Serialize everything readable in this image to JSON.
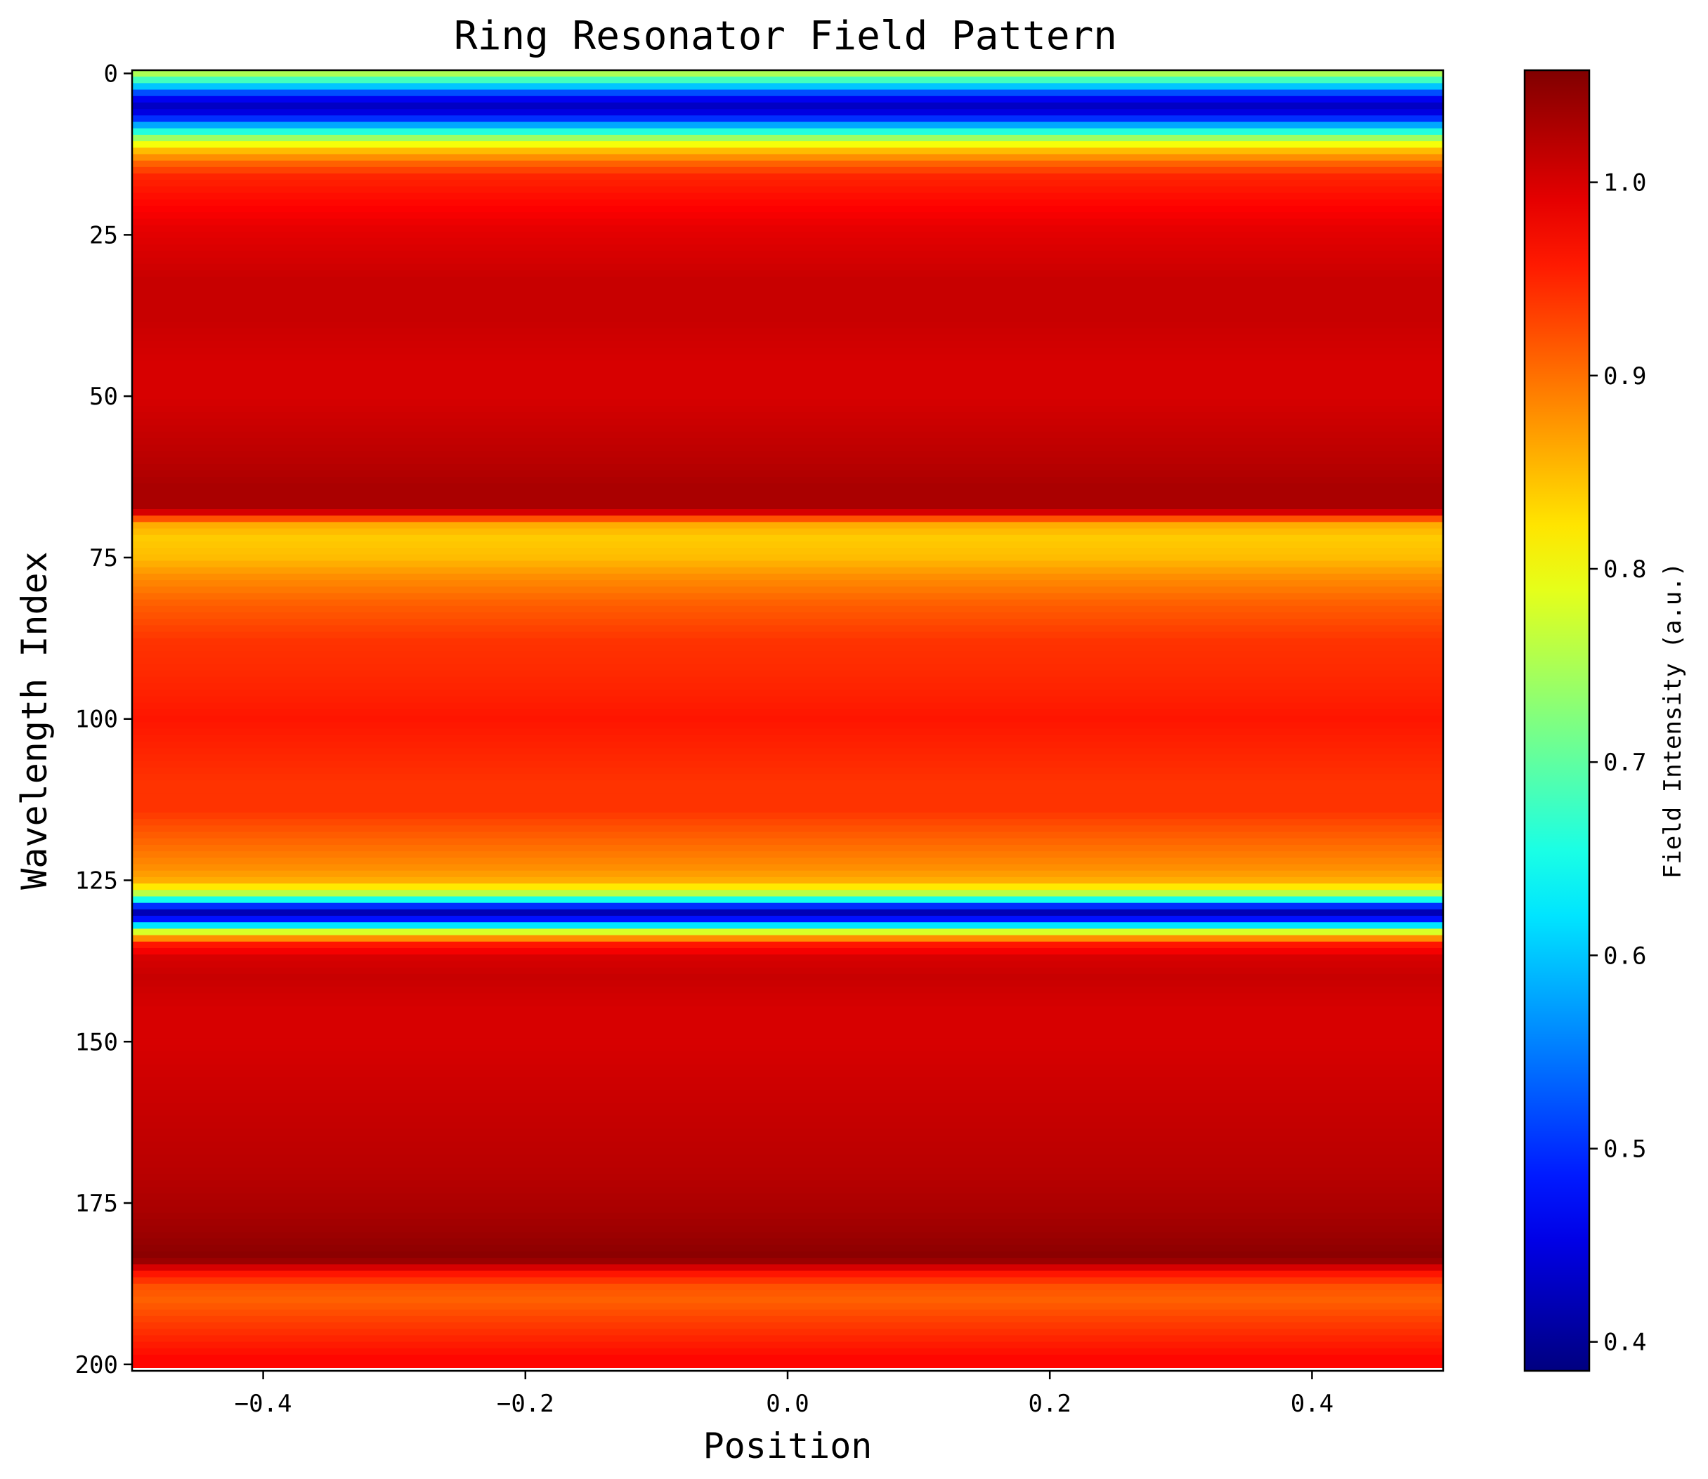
{
  "chart_data": {
    "type": "heatmap",
    "title": "Ring Resonator Field Pattern",
    "xlabel": "Position",
    "ylabel": "Wavelength Index",
    "colorbar_label": "Field Intensity (a.u.)",
    "colormap": "jet",
    "xlim": [
      -0.5,
      0.5
    ],
    "ylim": [
      201,
      -0.5
    ],
    "y_inverted": true,
    "clim": [
      0.385,
      1.058
    ],
    "x_ticks": [
      -0.4,
      -0.2,
      0.0,
      0.2,
      0.4
    ],
    "x_tick_labels": [
      "−0.4",
      "−0.2",
      "0.0",
      "0.2",
      "0.4"
    ],
    "y_ticks": [
      0,
      25,
      50,
      75,
      100,
      125,
      150,
      175,
      200
    ],
    "y_tick_labels": [
      "0",
      "25",
      "50",
      "75",
      "100",
      "125",
      "150",
      "175",
      "200"
    ],
    "colorbar_ticks": [
      0.4,
      0.5,
      0.6,
      0.7,
      0.8,
      0.9,
      1.0
    ],
    "colorbar_tick_labels": [
      "0.4",
      "0.5",
      "0.6",
      "0.7",
      "0.8",
      "0.9",
      "1.0"
    ],
    "grid": false,
    "row_profile": [
      [
        0,
        0.75
      ],
      [
        1,
        0.68
      ],
      [
        2,
        0.6
      ],
      [
        3,
        0.52
      ],
      [
        4,
        0.46
      ],
      [
        5,
        0.43
      ],
      [
        6,
        0.45
      ],
      [
        7,
        0.5
      ],
      [
        8,
        0.58
      ],
      [
        9,
        0.66
      ],
      [
        10,
        0.74
      ],
      [
        11,
        0.8
      ],
      [
        12,
        0.85
      ],
      [
        13,
        0.88
      ],
      [
        14,
        0.91
      ],
      [
        15,
        0.93
      ],
      [
        16,
        0.95
      ],
      [
        18,
        0.96
      ],
      [
        20,
        0.97
      ],
      [
        22,
        0.98
      ],
      [
        24,
        0.99
      ],
      [
        28,
        1.0
      ],
      [
        32,
        1.01
      ],
      [
        38,
        1.01
      ],
      [
        45,
        1.0
      ],
      [
        50,
        1.0
      ],
      [
        55,
        1.01
      ],
      [
        60,
        1.02
      ],
      [
        64,
        1.03
      ],
      [
        67,
        1.03
      ],
      [
        68,
        1.0
      ],
      [
        69,
        0.92
      ],
      [
        70,
        0.86
      ],
      [
        72,
        0.84
      ],
      [
        75,
        0.85
      ],
      [
        78,
        0.88
      ],
      [
        82,
        0.91
      ],
      [
        88,
        0.94
      ],
      [
        95,
        0.95
      ],
      [
        100,
        0.96
      ],
      [
        105,
        0.95
      ],
      [
        110,
        0.94
      ],
      [
        114,
        0.94
      ],
      [
        117,
        0.92
      ],
      [
        120,
        0.9
      ],
      [
        123,
        0.88
      ],
      [
        125,
        0.86
      ],
      [
        126,
        0.82
      ],
      [
        127,
        0.76
      ],
      [
        128,
        0.65
      ],
      [
        129,
        0.5
      ],
      [
        130,
        0.42
      ],
      [
        131,
        0.48
      ],
      [
        132,
        0.62
      ],
      [
        133,
        0.78
      ],
      [
        134,
        0.88
      ],
      [
        135,
        0.96
      ],
      [
        137,
        1.0
      ],
      [
        140,
        1.01
      ],
      [
        145,
        1.0
      ],
      [
        150,
        1.0
      ],
      [
        160,
        1.01
      ],
      [
        170,
        1.02
      ],
      [
        176,
        1.03
      ],
      [
        180,
        1.04
      ],
      [
        183,
        1.05
      ],
      [
        184,
        1.04
      ],
      [
        185,
        1.0
      ],
      [
        186,
        0.96
      ],
      [
        188,
        0.92
      ],
      [
        190,
        0.91
      ],
      [
        193,
        0.93
      ],
      [
        196,
        0.95
      ],
      [
        199,
        0.97
      ],
      [
        200,
        0.97
      ]
    ]
  }
}
